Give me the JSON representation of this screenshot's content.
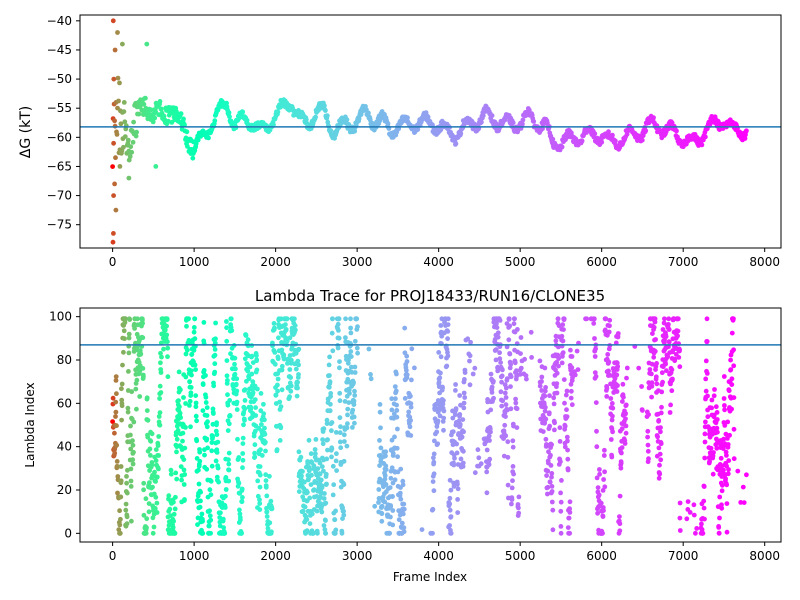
{
  "chart_data": [
    {
      "type": "scatter",
      "title": "",
      "xlabel": "",
      "ylabel": "ΔG (kT)",
      "xlim": [
        -400,
        8200
      ],
      "ylim": [
        -79,
        -39
      ],
      "x_ticks": [
        0,
        1000,
        2000,
        3000,
        4000,
        5000,
        6000,
        7000,
        8000
      ],
      "y_ticks": [
        -75,
        -70,
        -65,
        -60,
        -55,
        -50,
        -45,
        -40
      ],
      "x_tick_labels": [
        "0",
        "1000",
        "2000",
        "3000",
        "4000",
        "5000",
        "6000",
        "7000",
        "8000"
      ],
      "y_tick_labels": [
        "−75",
        "−70",
        "−65",
        "−60",
        "−55",
        "−50",
        "−45",
        "−40"
      ],
      "hline": -58.2,
      "n_frames": 7780,
      "colormap": "rainbow",
      "line_color": "#1f77b4",
      "series_profile": [
        [
          0,
          -58
        ],
        [
          20,
          -62
        ],
        [
          50,
          -55
        ],
        [
          100,
          -60
        ],
        [
          150,
          -57
        ],
        [
          200,
          -62
        ],
        [
          300,
          -57
        ],
        [
          400,
          -54
        ],
        [
          500,
          -56
        ],
        [
          600,
          -56
        ],
        [
          700,
          -55
        ],
        [
          800,
          -57
        ],
        [
          900,
          -59
        ],
        [
          1000,
          -62
        ],
        [
          1100,
          -60
        ],
        [
          1200,
          -58
        ],
        [
          1300,
          -56
        ],
        [
          1400,
          -54
        ],
        [
          1500,
          -58
        ],
        [
          1600,
          -57
        ],
        [
          1700,
          -57
        ],
        [
          1800,
          -59
        ],
        [
          1900,
          -58
        ],
        [
          2000,
          -56
        ],
        [
          2100,
          -55
        ],
        [
          2200,
          -54
        ],
        [
          2300,
          -57
        ],
        [
          2400,
          -58
        ],
        [
          2500,
          -55
        ],
        [
          2600,
          -56
        ],
        [
          2700,
          -59
        ],
        [
          2800,
          -58
        ],
        [
          2900,
          -58
        ],
        [
          3000,
          -57
        ],
        [
          3100,
          -56
        ],
        [
          3200,
          -57
        ],
        [
          3300,
          -57
        ],
        [
          3400,
          -59
        ],
        [
          3500,
          -58
        ],
        [
          3600,
          -58
        ],
        [
          3700,
          -57.5
        ],
        [
          3800,
          -57.5
        ],
        [
          3900,
          -57.5
        ],
        [
          4000,
          -58
        ],
        [
          4100,
          -59
        ],
        [
          4200,
          -59.5
        ],
        [
          4300,
          -58.5
        ],
        [
          4400,
          -57.5
        ],
        [
          4500,
          -57
        ],
        [
          4600,
          -56.2
        ],
        [
          4700,
          -57
        ],
        [
          4800,
          -57.8
        ],
        [
          4900,
          -57.7
        ],
        [
          5000,
          -57.5
        ],
        [
          5100,
          -56.5
        ],
        [
          5200,
          -57.3
        ],
        [
          5300,
          -58
        ],
        [
          5400,
          -61
        ],
        [
          5500,
          -60.8
        ],
        [
          5600,
          -60.5
        ],
        [
          5700,
          -60
        ],
        [
          5800,
          -59.5
        ],
        [
          5900,
          -59.7
        ],
        [
          6000,
          -59.5
        ],
        [
          6100,
          -61
        ],
        [
          6200,
          -60.5
        ],
        [
          6300,
          -59.8
        ],
        [
          6400,
          -59.5
        ],
        [
          6500,
          -59
        ],
        [
          6600,
          -57.8
        ],
        [
          6700,
          -58
        ],
        [
          6800,
          -59
        ],
        [
          6900,
          -59
        ],
        [
          7000,
          -60.5
        ],
        [
          7100,
          -61
        ],
        [
          7200,
          -60
        ],
        [
          7300,
          -58.5
        ],
        [
          7400,
          -57.5
        ],
        [
          7500,
          -57
        ],
        [
          7600,
          -58.8
        ],
        [
          7700,
          -58.7
        ],
        [
          7780,
          -58.8
        ]
      ]
    },
    {
      "type": "scatter",
      "title": "Lambda Trace for PROJ18433/RUN16/CLONE35",
      "xlabel": "Frame Index",
      "ylabel": "Lambda Index",
      "xlim": [
        -400,
        8200
      ],
      "ylim": [
        -4,
        104
      ],
      "x_ticks": [
        0,
        1000,
        2000,
        3000,
        4000,
        5000,
        6000,
        7000,
        8000
      ],
      "y_ticks": [
        0,
        20,
        40,
        60,
        80,
        100
      ],
      "x_tick_labels": [
        "0",
        "1000",
        "2000",
        "3000",
        "4000",
        "5000",
        "6000",
        "7000",
        "8000"
      ],
      "y_tick_labels": [
        "0",
        "20",
        "40",
        "60",
        "80",
        "100"
      ],
      "hline": 87,
      "lambda_range": [
        0,
        99
      ],
      "n_frames": 7780,
      "colormap": "rainbow",
      "line_color": "#1f77b4"
    }
  ]
}
